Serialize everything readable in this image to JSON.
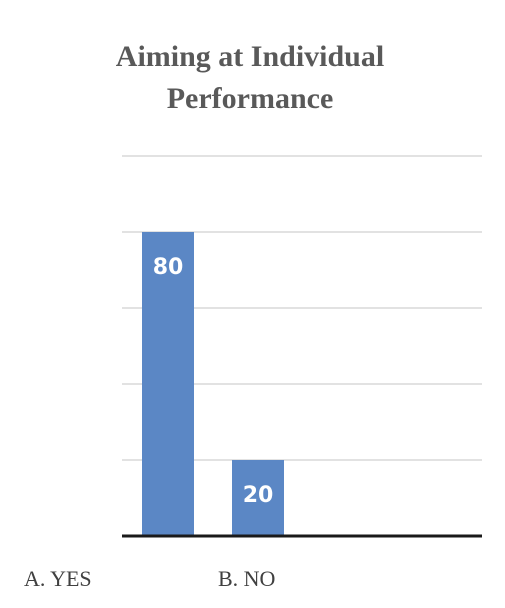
{
  "chart_data": {
    "type": "bar",
    "title": "Aiming at Individual Performance",
    "title_lines": [
      "Aiming at Individual",
      "Performance"
    ],
    "categories": [
      "A. YES",
      "B. NO"
    ],
    "values": [
      80,
      20
    ],
    "data_labels": [
      "80",
      "20"
    ],
    "ylim": [
      0,
      100
    ],
    "gridlines": [
      20,
      40,
      60,
      80,
      100
    ],
    "grid": true,
    "legend": "none",
    "bar_color": "#5B87C5",
    "grid_color": "#d9d9d9",
    "axis_color": "#1a1a1a"
  }
}
